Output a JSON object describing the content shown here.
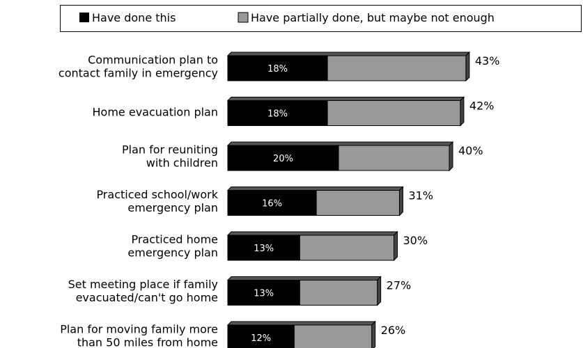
{
  "chart_data": {
    "type": "bar",
    "orientation": "horizontal",
    "stacked": true,
    "legend": {
      "placement": "top",
      "items": [
        {
          "name": "Have done this",
          "color": "#000000"
        },
        {
          "name": "Have partially done, but maybe not enough",
          "color": "#999999"
        }
      ]
    },
    "categories": [
      [
        "Communication plan to",
        "contact family in emergency"
      ],
      [
        "Home evacuation plan"
      ],
      [
        "Plan for reuniting",
        "with children"
      ],
      [
        "Practiced school/work",
        "emergency plan"
      ],
      [
        "Practiced home",
        "emergency plan"
      ],
      [
        "Set meeting place if family",
        "evacuated/can't go home"
      ],
      [
        "Plan for moving family more",
        "than 50 miles from home"
      ]
    ],
    "series": [
      {
        "name": "Have done this",
        "values": [
          18,
          18,
          20,
          16,
          13,
          13,
          12
        ],
        "labels": [
          "18%",
          "18%",
          "20%",
          "16%",
          "13%",
          "13%",
          "12%"
        ]
      },
      {
        "name": "Have partially done, but maybe not enough",
        "values": [
          25,
          24,
          20,
          15,
          17,
          14,
          14
        ]
      }
    ],
    "totals": [
      43,
      42,
      40,
      31,
      30,
      27,
      26
    ],
    "total_labels": [
      "43%",
      "42%",
      "40%",
      "31%",
      "30%",
      "27%",
      "26%"
    ],
    "colors": {
      "done": "#000000",
      "partial": "#999999",
      "edge": "#000000"
    },
    "style": "3d-bar",
    "grid": false
  }
}
